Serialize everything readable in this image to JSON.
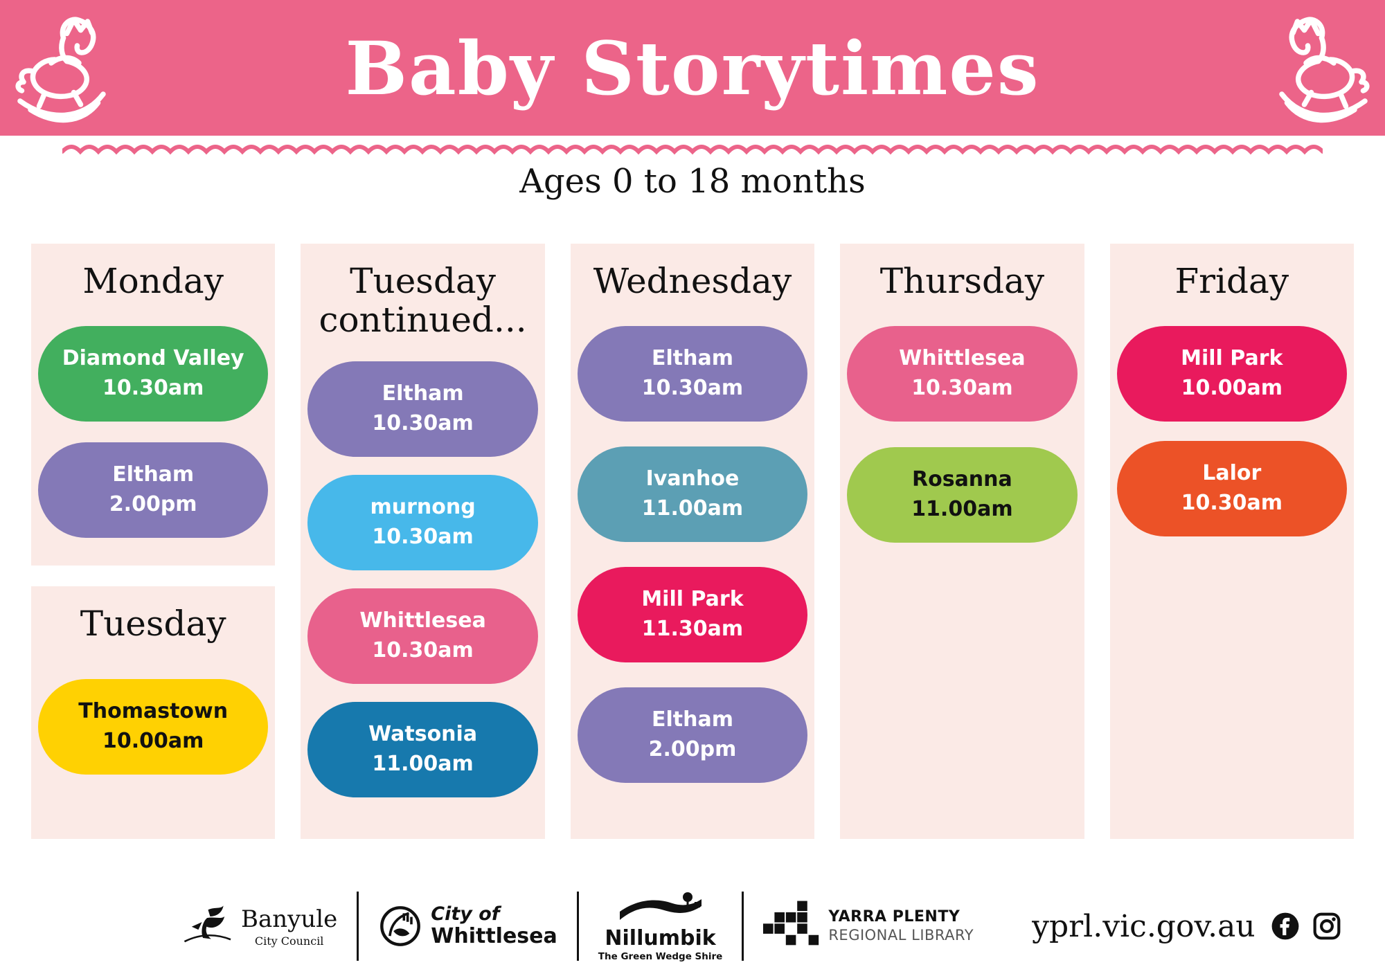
{
  "header": {
    "title": "Baby Storytimes",
    "subtitle": "Ages 0 to 18 months"
  },
  "theme": {
    "banner_pink": "#EC6489",
    "panel_cream": "#FBEAE6",
    "heading_black": "#111111"
  },
  "schedule": {
    "columns": [
      {
        "sections": [
          {
            "heading": "Monday",
            "events": [
              {
                "location": "Diamond Valley",
                "time": "10.30am",
                "bg": "#42AF5E",
                "fg": "#FFFFFF"
              },
              {
                "location": "Eltham",
                "time": "2.00pm",
                "bg": "#8479B7",
                "fg": "#FFFFFF"
              }
            ]
          },
          {
            "heading": "Tuesday",
            "events": [
              {
                "location": "Thomastown",
                "time": "10.00am",
                "bg": "#FFD102",
                "fg": "#111111"
              }
            ]
          }
        ]
      },
      {
        "sections": [
          {
            "heading": "Tuesday continued...",
            "events": [
              {
                "location": "Eltham",
                "time": "10.30am",
                "bg": "#8479B7",
                "fg": "#FFFFFF"
              },
              {
                "location": "murnong",
                "time": "10.30am",
                "bg": "#47B8EA",
                "fg": "#FFFFFF"
              },
              {
                "location": "Whittlesea",
                "time": "10.30am",
                "bg": "#E8618C",
                "fg": "#FFFFFF"
              },
              {
                "location": "Watsonia",
                "time": "11.00am",
                "bg": "#1779AD",
                "fg": "#FFFFFF"
              }
            ]
          }
        ]
      },
      {
        "sections": [
          {
            "heading": "Wednesday",
            "events": [
              {
                "location": "Eltham",
                "time": "10.30am",
                "bg": "#8479B7",
                "fg": "#FFFFFF"
              },
              {
                "location": "Ivanhoe",
                "time": "11.00am",
                "bg": "#5C9FB4",
                "fg": "#FFFFFF"
              },
              {
                "location": "Mill Park",
                "time": "11.30am",
                "bg": "#E91A5D",
                "fg": "#FFFFFF"
              },
              {
                "location": "Eltham",
                "time": "2.00pm",
                "bg": "#8479B7",
                "fg": "#FFFFFF"
              }
            ]
          }
        ]
      },
      {
        "sections": [
          {
            "heading": "Thursday",
            "events": [
              {
                "location": "Whittlesea",
                "time": "10.30am",
                "bg": "#E8618C",
                "fg": "#FFFFFF"
              },
              {
                "location": "Rosanna",
                "time": "11.00am",
                "bg": "#A0C94E",
                "fg": "#111111"
              }
            ]
          }
        ]
      },
      {
        "sections": [
          {
            "heading": "Friday",
            "events": [
              {
                "location": "Mill Park",
                "time": "10.00am",
                "bg": "#E91A5D",
                "fg": "#FFFFFF"
              },
              {
                "location": "Lalor",
                "time": "10.30am",
                "bg": "#EC5227",
                "fg": "#FFFFFF"
              }
            ]
          }
        ]
      }
    ]
  },
  "footer": {
    "logos": {
      "banyule": {
        "name": "Banyule",
        "sub": "City Council"
      },
      "whittlesea": {
        "line1": "City of",
        "line2": "Whittlesea"
      },
      "nillumbik": {
        "name": "Nillumbik",
        "sub": "The Green Wedge Shire"
      },
      "yprl": {
        "line1": "YARRA PLENTY",
        "line2": "REGIONAL LIBRARY"
      }
    },
    "website": "yprl.vic.gov.au",
    "social": [
      "facebook",
      "instagram"
    ]
  }
}
